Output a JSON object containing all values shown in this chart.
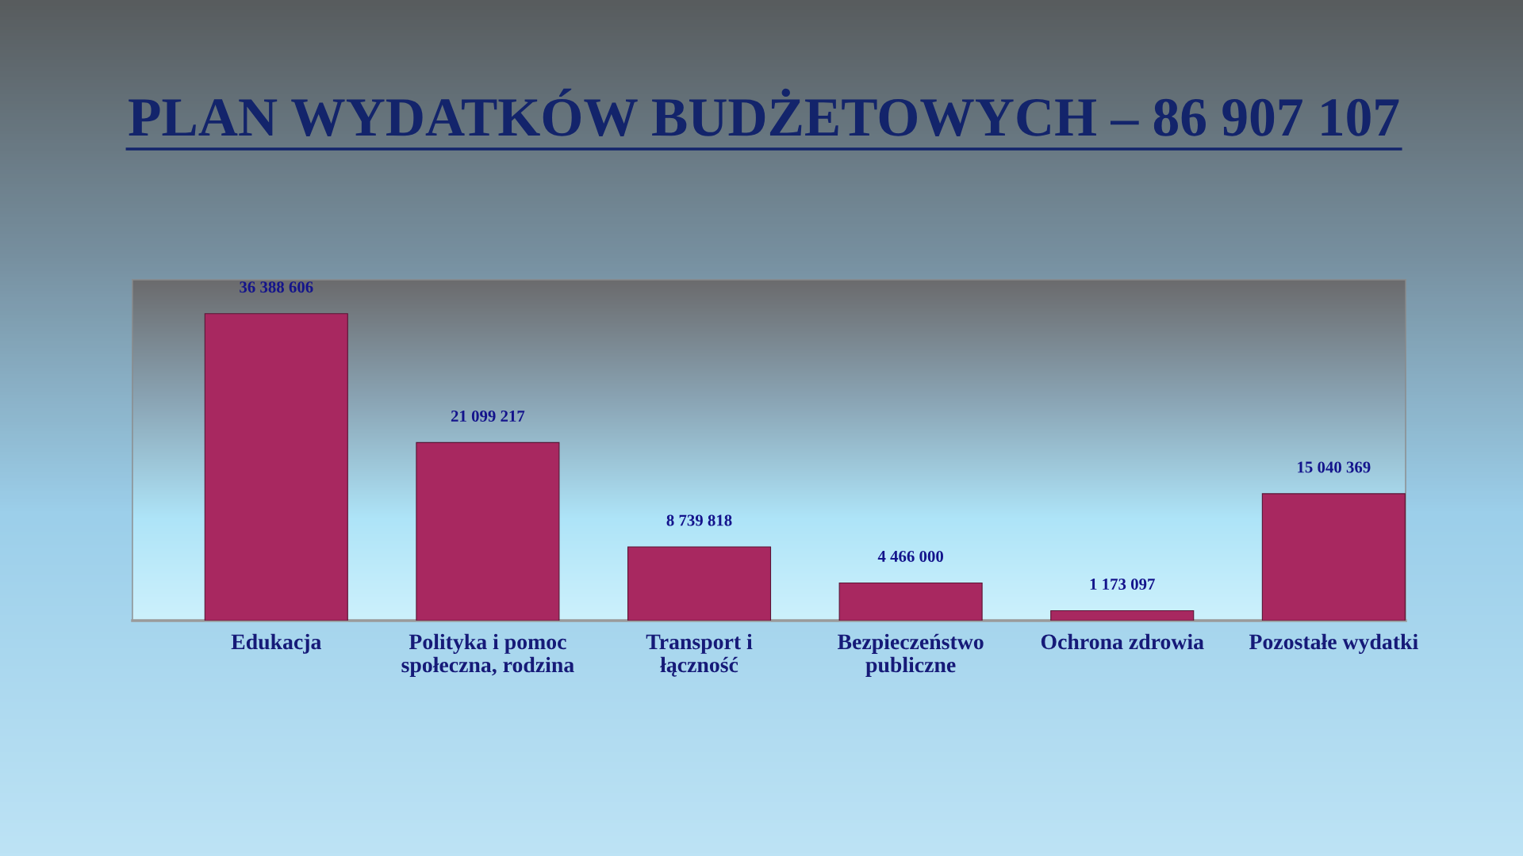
{
  "chart_data": {
    "type": "bar",
    "title": "PLAN WYDATKÓW BUDŻETOWYCH – 86 907 107",
    "categories": [
      "Edukacja",
      "Polityka i pomoc\nspołeczna, rodzina",
      "Transport i\nłączność",
      "Bezpieczeństwo\npubliczne",
      "Ochrona zdrowia",
      "Pozostałe wydatki"
    ],
    "values": [
      36388606,
      21099217,
      8739818,
      4466000,
      1173097,
      15040369
    ],
    "value_labels": [
      "36 388 606",
      "21 099 217",
      "8 739 818",
      "4 466 000",
      "1 173 097",
      "15 040 369"
    ],
    "color": "#a82860",
    "ylim": [
      0,
      40400000
    ],
    "tick_labels": "x"
  }
}
